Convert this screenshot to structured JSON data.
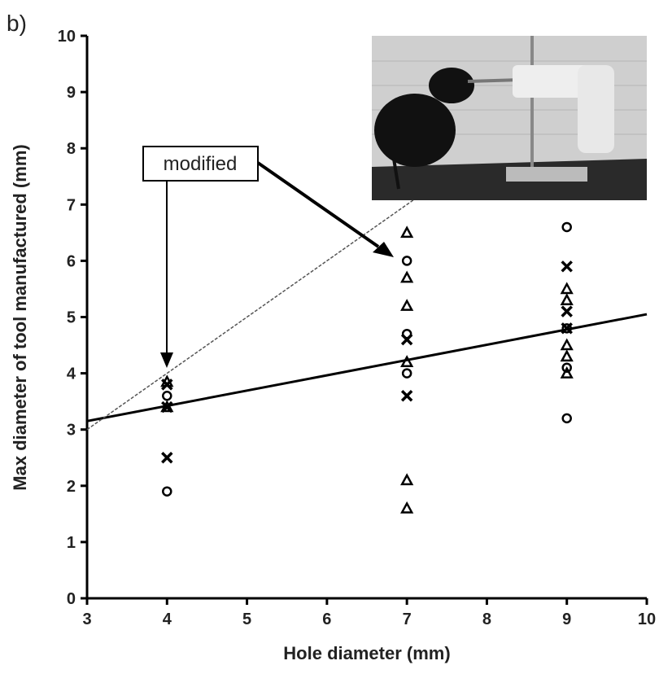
{
  "chart_data": {
    "type": "scatter",
    "panel_label": "b)",
    "x_label": "Hole diameter (mm)",
    "y_label": "Max diameter of tool manufactured (mm)",
    "xlim": [
      3,
      10
    ],
    "xticks": [
      3,
      4,
      5,
      6,
      7,
      8,
      9,
      10
    ],
    "ylim": [
      0,
      10
    ],
    "yticks": [
      0,
      1,
      2,
      3,
      4,
      5,
      6,
      7,
      8,
      9,
      10
    ],
    "series": [
      {
        "marker": "circle",
        "color": "#000000",
        "x": [
          4,
          4,
          7,
          7,
          7,
          9,
          9,
          9,
          9
        ],
        "values": [
          1.9,
          3.6,
          6.0,
          4.7,
          4.0,
          6.6,
          4.8,
          4.1,
          3.2
        ]
      },
      {
        "marker": "triangle",
        "color": "#000000",
        "x": [
          4,
          4,
          7,
          7,
          7,
          7,
          7,
          7,
          9,
          9,
          9,
          9,
          9
        ],
        "values": [
          3.4,
          3.85,
          6.5,
          5.7,
          5.2,
          4.2,
          2.1,
          1.6,
          5.5,
          5.3,
          4.5,
          4.3,
          4.0
        ]
      },
      {
        "marker": "cross",
        "color": "#000000",
        "x": [
          4,
          4,
          4,
          7,
          7,
          9,
          9,
          9
        ],
        "values": [
          2.5,
          3.4,
          3.8,
          4.6,
          3.6,
          5.9,
          5.1,
          4.8
        ]
      }
    ],
    "lines": [
      {
        "style": "solid",
        "x": [
          3,
          10
        ],
        "y": [
          3.15,
          5.05
        ]
      },
      {
        "style": "dashed",
        "x": [
          3,
          7.2
        ],
        "y": [
          3,
          7.2
        ]
      }
    ],
    "annotation": "modified"
  }
}
